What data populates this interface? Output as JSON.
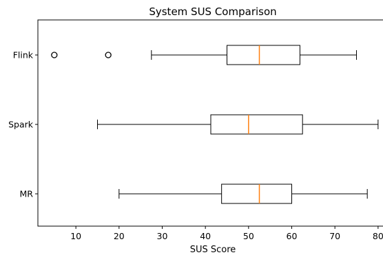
{
  "chart_data": {
    "type": "boxplot",
    "orientation": "horizontal",
    "title": "System SUS Comparison",
    "xlabel": "SUS Score",
    "ylabel": "",
    "xlim": [
      1.2,
      81.3
    ],
    "xticks": [
      10,
      20,
      30,
      40,
      50,
      60,
      70,
      80
    ],
    "categories": [
      "MR",
      "Spark",
      "Flink"
    ],
    "boxes": [
      {
        "category": "MR",
        "whisker_low": 20,
        "q1": 43.75,
        "median": 52.5,
        "q3": 60,
        "whisker_high": 77.5,
        "outliers": []
      },
      {
        "category": "Spark",
        "whisker_low": 15,
        "q1": 41.25,
        "median": 50,
        "q3": 62.5,
        "whisker_high": 80,
        "outliers": []
      },
      {
        "category": "Flink",
        "whisker_low": 27.5,
        "q1": 45,
        "median": 52.5,
        "q3": 61.9,
        "whisker_high": 75,
        "outliers": [
          5,
          17.5
        ]
      }
    ],
    "grid": false,
    "colors": {
      "box": "#000000",
      "median": "#ff7f0e",
      "background": "#ffffff"
    }
  }
}
